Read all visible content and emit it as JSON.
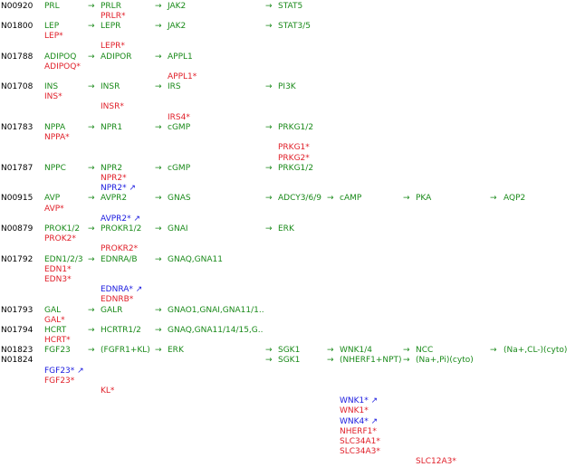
{
  "colors": {
    "id": "#000000",
    "green": "#1a8a1a",
    "red": "#e0202a",
    "blue": "#1a1adf"
  },
  "arrow": "→",
  "rows": [
    {
      "id": "N00920",
      "cells": [
        "PRL",
        "PRLR",
        "JAK2",
        "STAT5"
      ],
      "notes": [
        {
          "text": "PRLR*",
          "color": "red"
        }
      ]
    },
    {
      "id": "N01800",
      "cells": [
        "LEP",
        "LEPR",
        "JAK2",
        "STAT3/5"
      ],
      "notes": [
        {
          "text": "LEP*",
          "color": "red"
        },
        {
          "text": "LEPR*",
          "color": "red"
        }
      ]
    },
    {
      "id": "N01788",
      "cells": [
        "ADIPOQ",
        "ADIPOR",
        "APPL1"
      ],
      "notes": [
        {
          "text": "ADIPOQ*",
          "color": "red"
        },
        {
          "text": "APPL1*",
          "color": "red"
        }
      ]
    },
    {
      "id": "N01708",
      "cells": [
        "INS",
        "INSR",
        "IRS",
        "PI3K"
      ],
      "notes": [
        {
          "text": "INS*",
          "color": "red"
        },
        {
          "text": "INSR*",
          "color": "red"
        },
        {
          "text": "IRS4*",
          "color": "red"
        }
      ]
    },
    {
      "id": "N01783",
      "cells": [
        "NPPA",
        "NPR1",
        "cGMP",
        "PRKG1/2"
      ],
      "notes": [
        {
          "text": "NPPA*",
          "color": "red"
        },
        {
          "text": "PRKG1*",
          "color": "red"
        },
        {
          "text": "PRKG2*",
          "color": "red"
        }
      ]
    },
    {
      "id": "N01787",
      "cells": [
        "NPPC",
        "NPR2",
        "cGMP",
        "PRKG1/2"
      ],
      "notes": [
        {
          "text": "NPR2*",
          "color": "red"
        },
        {
          "text": "NPR2* ↗",
          "color": "blue"
        }
      ]
    },
    {
      "id": "N00915",
      "cells": [
        "AVP",
        "AVPR2",
        "GNAS",
        "ADCY3/6/9",
        "cAMP",
        "PKA",
        "AQP2"
      ],
      "notes": [
        {
          "text": "AVP*",
          "color": "red"
        },
        {
          "text": "AVPR2* ↗",
          "color": "blue"
        }
      ]
    },
    {
      "id": "N00879",
      "cells": [
        "PROK1/2",
        "PROKR1/2",
        "GNAI",
        "ERK"
      ],
      "notes": [
        {
          "text": "PROK2*",
          "color": "red"
        },
        {
          "text": "PROKR2*",
          "color": "red"
        }
      ]
    },
    {
      "id": "N01792",
      "cells": [
        "EDN1/2/3",
        "EDNRA/B",
        "GNAQ,GNA11"
      ],
      "notes": [
        {
          "text": "EDN1*",
          "color": "red"
        },
        {
          "text": "EDN3*",
          "color": "red"
        },
        {
          "text": "EDNRA* ↗",
          "color": "blue"
        },
        {
          "text": "EDNRB*",
          "color": "red"
        }
      ]
    },
    {
      "id": "N01793",
      "cells": [
        "GAL",
        "GALR",
        "GNAO1,GNAI,GNA11/1.."
      ],
      "notes": [
        {
          "text": "GAL*",
          "color": "red"
        }
      ]
    },
    {
      "id": "N01794",
      "cells": [
        "HCRT",
        "HCRTR1/2",
        "GNAQ,GNA11/14/15,G.."
      ],
      "notes": [
        {
          "text": "HCRT*",
          "color": "red"
        }
      ]
    },
    {
      "id": "N01823",
      "cells": [
        "FGF23",
        "(FGFR1+KL)",
        "ERK",
        "SGK1",
        "WNK1/4",
        "NCC",
        "(Na+,CL-)(cyto)"
      ]
    },
    {
      "id": "N01824",
      "cells": [
        "SGK1",
        "(NHERF1+NPT)",
        "(Na+,Pi)(cyto)"
      ],
      "notes": [
        {
          "text": "FGF23* ↗",
          "color": "blue"
        },
        {
          "text": "FGF23*",
          "color": "red"
        },
        {
          "text": "KL*",
          "color": "red"
        },
        {
          "text": "WNK1* ↗",
          "color": "blue"
        },
        {
          "text": "WNK1*",
          "color": "red"
        },
        {
          "text": "WNK4* ↗",
          "color": "blue"
        },
        {
          "text": "NHERF1*",
          "color": "red"
        },
        {
          "text": "SLC34A1*",
          "color": "red"
        },
        {
          "text": "SLC34A3*",
          "color": "red"
        },
        {
          "text": "SLC12A3*",
          "color": "red"
        }
      ]
    }
  ]
}
